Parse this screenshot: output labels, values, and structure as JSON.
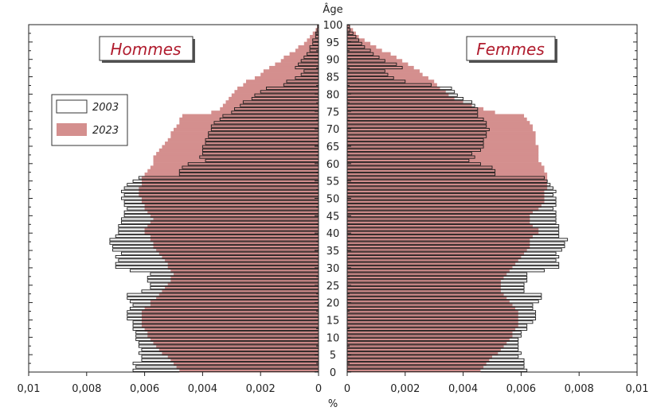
{
  "chart_data": {
    "type": "population-pyramid",
    "title_left": "Hommes",
    "title_right": "Femmes",
    "ylabel": "Âge",
    "xlabel": "%",
    "x_tick_labels_left": [
      "0,01",
      "0,008",
      "0,006",
      "0,004",
      "0,002",
      "0"
    ],
    "x_tick_labels_right": [
      "0",
      "0,002",
      "0,004",
      "0,006",
      "0,008",
      "0,01"
    ],
    "x_ticks_left": [
      0.01,
      0.008,
      0.006,
      0.004,
      0.002,
      0
    ],
    "x_ticks_right": [
      0,
      0.002,
      0.004,
      0.006,
      0.008,
      0.01
    ],
    "xlim": [
      0,
      0.01
    ],
    "age_ticks": [
      "0",
      "5",
      "10",
      "15",
      "20",
      "25",
      "30",
      "35",
      "40",
      "45",
      "50",
      "55",
      "60",
      "65",
      "70",
      "75",
      "80",
      "85",
      "90",
      "95",
      "100"
    ],
    "age_tick_values": [
      0,
      5,
      10,
      15,
      20,
      25,
      30,
      35,
      40,
      45,
      50,
      55,
      60,
      65,
      70,
      75,
      80,
      85,
      90,
      95,
      100
    ],
    "ages": [
      0,
      1,
      2,
      3,
      4,
      5,
      6,
      7,
      8,
      9,
      10,
      11,
      12,
      13,
      14,
      15,
      16,
      17,
      18,
      19,
      20,
      21,
      22,
      23,
      24,
      25,
      26,
      27,
      28,
      29,
      30,
      31,
      32,
      33,
      34,
      35,
      36,
      37,
      38,
      39,
      40,
      41,
      42,
      43,
      44,
      45,
      46,
      47,
      48,
      49,
      50,
      51,
      52,
      53,
      54,
      55,
      56,
      57,
      58,
      59,
      60,
      61,
      62,
      63,
      64,
      65,
      66,
      67,
      68,
      69,
      70,
      71,
      72,
      73,
      74,
      75,
      76,
      77,
      78,
      79,
      80,
      81,
      82,
      83,
      84,
      85,
      86,
      87,
      88,
      89,
      90,
      91,
      92,
      93,
      94,
      95,
      96,
      97,
      98,
      99,
      100
    ],
    "legend": [
      {
        "label": "2003",
        "style": "outline",
        "color": "#ffffff"
      },
      {
        "label": "2023",
        "style": "filled",
        "color": "#d48f8e"
      }
    ],
    "series": [
      {
        "name": "2003",
        "side": "Hommes",
        "values": [
          0.0064,
          0.0063,
          0.0064,
          0.0061,
          0.0061,
          0.0062,
          0.0061,
          0.0062,
          0.0062,
          0.0063,
          0.0063,
          0.0063,
          0.0064,
          0.0064,
          0.0064,
          0.0066,
          0.0066,
          0.0066,
          0.0065,
          0.0064,
          0.0065,
          0.0066,
          0.0066,
          0.0061,
          0.0058,
          0.0058,
          0.0059,
          0.0059,
          0.0058,
          0.0065,
          0.007,
          0.007,
          0.0069,
          0.007,
          0.0068,
          0.0071,
          0.0071,
          0.0072,
          0.0072,
          0.007,
          0.0069,
          0.0069,
          0.0069,
          0.0068,
          0.0068,
          0.0067,
          0.0067,
          0.0066,
          0.0067,
          0.0067,
          0.0068,
          0.0067,
          0.0068,
          0.0067,
          0.0066,
          0.0064,
          0.0062,
          0.0048,
          0.0048,
          0.0047,
          0.0045,
          0.0039,
          0.0041,
          0.004,
          0.004,
          0.004,
          0.0039,
          0.0039,
          0.0038,
          0.0038,
          0.0037,
          0.0037,
          0.0036,
          0.0034,
          0.0033,
          0.003,
          0.0029,
          0.0027,
          0.0026,
          0.0023,
          0.0022,
          0.002,
          0.0018,
          0.0012,
          0.0011,
          0.0008,
          0.0006,
          0.0005,
          0.0008,
          0.0007,
          0.0006,
          0.0005,
          0.0004,
          0.0003,
          0.0003,
          0.0002,
          0.0002,
          0.0001,
          0.0001,
          5e-05,
          3e-05
        ]
      },
      {
        "name": "2003",
        "side": "Femmes",
        "values": [
          0.0062,
          0.0061,
          0.0061,
          0.0061,
          0.0059,
          0.006,
          0.0059,
          0.0059,
          0.0059,
          0.0059,
          0.006,
          0.006,
          0.0062,
          0.0062,
          0.0064,
          0.0065,
          0.0065,
          0.0065,
          0.0064,
          0.0064,
          0.0066,
          0.0067,
          0.0067,
          0.0061,
          0.0061,
          0.0061,
          0.0062,
          0.0062,
          0.0062,
          0.0068,
          0.0073,
          0.0073,
          0.0072,
          0.0073,
          0.0072,
          0.0074,
          0.0075,
          0.0075,
          0.0076,
          0.0073,
          0.0073,
          0.0073,
          0.0073,
          0.0072,
          0.0072,
          0.0072,
          0.0072,
          0.0071,
          0.0072,
          0.0072,
          0.0072,
          0.0071,
          0.0072,
          0.0071,
          0.007,
          0.0069,
          0.0068,
          0.0051,
          0.0051,
          0.005,
          0.0046,
          0.0042,
          0.0044,
          0.0043,
          0.0046,
          0.0047,
          0.0047,
          0.0047,
          0.0048,
          0.0048,
          0.0049,
          0.0048,
          0.0048,
          0.0047,
          0.0045,
          0.0045,
          0.0045,
          0.0044,
          0.0043,
          0.004,
          0.0038,
          0.0037,
          0.0036,
          0.0029,
          0.002,
          0.0016,
          0.0014,
          0.0013,
          0.0019,
          0.0017,
          0.0013,
          0.0011,
          0.0009,
          0.0008,
          0.0006,
          0.0005,
          0.0004,
          0.0003,
          0.0002,
          0.0001,
          8e-05
        ]
      },
      {
        "name": "2023",
        "side": "Hommes",
        "values": [
          0.0048,
          0.0049,
          0.005,
          0.0051,
          0.0052,
          0.0054,
          0.0055,
          0.0056,
          0.0057,
          0.0058,
          0.0059,
          0.0059,
          0.006,
          0.0061,
          0.0061,
          0.0061,
          0.0061,
          0.0061,
          0.006,
          0.0058,
          0.0058,
          0.0056,
          0.0055,
          0.0054,
          0.0053,
          0.0052,
          0.0051,
          0.0051,
          0.005,
          0.0051,
          0.0052,
          0.0052,
          0.0053,
          0.0054,
          0.0055,
          0.0056,
          0.0057,
          0.0057,
          0.0058,
          0.0058,
          0.006,
          0.006,
          0.0059,
          0.0058,
          0.0057,
          0.0058,
          0.0059,
          0.006,
          0.006,
          0.0061,
          0.0061,
          0.0062,
          0.0062,
          0.0062,
          0.0061,
          0.0061,
          0.0061,
          0.006,
          0.0059,
          0.0058,
          0.0057,
          0.0057,
          0.0057,
          0.0056,
          0.0055,
          0.0054,
          0.0053,
          0.0052,
          0.0051,
          0.0051,
          0.005,
          0.0049,
          0.0048,
          0.0048,
          0.0047,
          0.0037,
          0.0034,
          0.0033,
          0.0032,
          0.0031,
          0.003,
          0.0029,
          0.0028,
          0.0026,
          0.0025,
          0.0022,
          0.002,
          0.0019,
          0.0017,
          0.0015,
          0.0013,
          0.0012,
          0.001,
          0.0008,
          0.0007,
          0.0005,
          0.0004,
          0.0003,
          0.0002,
          0.0001,
          5e-05
        ]
      },
      {
        "name": "2023",
        "side": "Femmes",
        "values": [
          0.0046,
          0.0047,
          0.0048,
          0.0049,
          0.005,
          0.0052,
          0.0053,
          0.0054,
          0.0055,
          0.0056,
          0.0057,
          0.0057,
          0.0058,
          0.0059,
          0.0059,
          0.0059,
          0.0059,
          0.0059,
          0.0058,
          0.0057,
          0.0056,
          0.0055,
          0.0054,
          0.0053,
          0.0053,
          0.0053,
          0.0053,
          0.0054,
          0.0055,
          0.0056,
          0.0057,
          0.0058,
          0.0059,
          0.006,
          0.0061,
          0.0062,
          0.0063,
          0.0063,
          0.0063,
          0.0064,
          0.0066,
          0.0066,
          0.0064,
          0.0063,
          0.0063,
          0.0063,
          0.0064,
          0.0066,
          0.0067,
          0.0068,
          0.0068,
          0.0068,
          0.0068,
          0.0069,
          0.0069,
          0.0069,
          0.0069,
          0.0069,
          0.0068,
          0.0068,
          0.0067,
          0.0066,
          0.0066,
          0.0066,
          0.0066,
          0.0066,
          0.0065,
          0.0065,
          0.0065,
          0.0065,
          0.0064,
          0.0064,
          0.0063,
          0.0062,
          0.0061,
          0.0051,
          0.0047,
          0.0043,
          0.004,
          0.0037,
          0.0035,
          0.0034,
          0.0032,
          0.0031,
          0.003,
          0.0028,
          0.0026,
          0.0025,
          0.0023,
          0.0021,
          0.0019,
          0.0017,
          0.0015,
          0.0012,
          0.001,
          0.0008,
          0.0006,
          0.0004,
          0.0003,
          0.0002,
          0.0001
        ]
      }
    ]
  }
}
